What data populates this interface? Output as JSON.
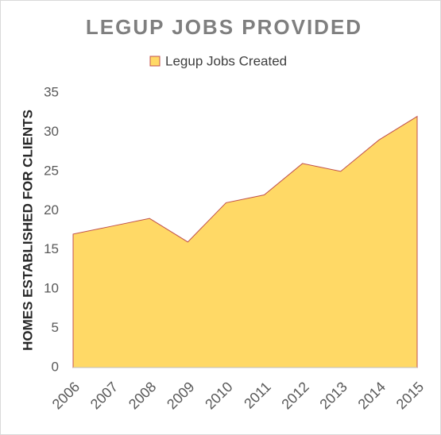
{
  "chart_data": {
    "type": "area",
    "title": "LEGUP JOBS PROVIDED",
    "y_label": "HOMES ESTABLISHED FOR CLIENTS",
    "categories": [
      "2006",
      "2007",
      "2008",
      "2009",
      "2010",
      "2011",
      "2012",
      "2013",
      "2014",
      "2015"
    ],
    "series": [
      {
        "name": "Legup Jobs Created",
        "color": "#ffd966",
        "edge_color": "#c0504d",
        "values": [
          17,
          18,
          19,
          16,
          21,
          22,
          26,
          25,
          29,
          32
        ]
      }
    ],
    "ylim": [
      0,
      35
    ],
    "yticks": [
      0,
      5,
      10,
      15,
      20,
      25,
      30,
      35
    ],
    "grid": false,
    "legend": "top"
  }
}
